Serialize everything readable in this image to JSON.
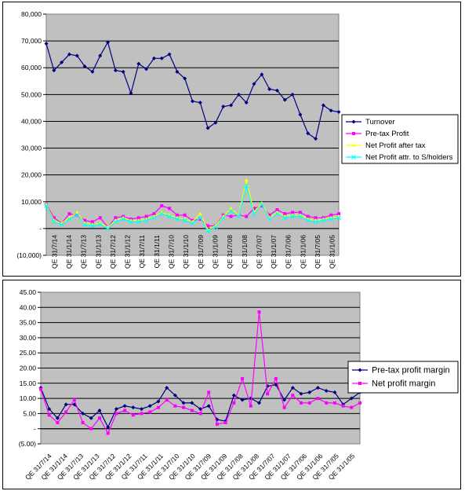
{
  "charts": [
    {
      "type": "line",
      "ylim": [
        -10000,
        80000
      ],
      "yticks": [
        -10000,
        0,
        10000,
        20000,
        30000,
        40000,
        50000,
        60000,
        70000,
        80000
      ],
      "ytick_labels": [
        "(10,000)",
        "-",
        "10,000",
        "20,000",
        "30,000",
        "40,000",
        "50,000",
        "60,000",
        "70,000",
        "80,000"
      ],
      "xtick_labels": [
        "QE 31/7/14",
        "QE 31/1/14",
        "QE 31/7/13",
        "QE 31/1/13",
        "QE 31/7/12",
        "QE 31/1/12",
        "QE 31/7/11",
        "QE 31/1/11",
        "QE 31/7/10",
        "QE 31/1/10",
        "QE 31/7/09",
        "QE 31/1/09",
        "QE 31/7/08",
        "QE 31/1/08",
        "QE 31/7/07",
        "QE 31/1/07",
        "QE 31/7/06",
        "QE 31/1/06",
        "QE 31/7/05",
        "QE 31/1/05"
      ],
      "grid": true,
      "legend_position": "right",
      "series": [
        {
          "name": "Turnover",
          "color": "#000080",
          "marker": "diamond",
          "values": [
            69000,
            59000,
            62000,
            65000,
            64500,
            60500,
            58500,
            64500,
            69500,
            59000,
            58500,
            50500,
            61500,
            59500,
            63500,
            63500,
            65000,
            58500,
            56000,
            47500,
            47000,
            37500,
            39500,
            45500,
            46000,
            50000,
            47000,
            54000,
            57500,
            52000,
            51500,
            48000,
            50000,
            42500,
            35500,
            33500,
            46000,
            44000,
            43500
          ]
        },
        {
          "name": "Pre-tax Profit",
          "color": "#ff00ff",
          "marker": "square",
          "values": [
            9000,
            4000,
            2000,
            5500,
            5000,
            3000,
            2500,
            4000,
            500,
            4000,
            4500,
            3500,
            4000,
            4500,
            5500,
            8500,
            7500,
            5000,
            5000,
            3000,
            3500,
            1000,
            1000,
            5000,
            4500,
            5000,
            4500,
            7500,
            8500,
            5000,
            7000,
            5500,
            6000,
            6000,
            4500,
            4000,
            4000,
            5000,
            5500
          ]
        },
        {
          "name": "Net Profit after tax",
          "color": "#ffff00",
          "marker": "triangle",
          "values": [
            9000,
            3000,
            2000,
            4000,
            6000,
            2000,
            1500,
            2000,
            500,
            3000,
            4000,
            3000,
            3000,
            3500,
            4500,
            6000,
            5000,
            4000,
            3500,
            2500,
            5500,
            -500,
            1000,
            4500,
            7500,
            5000,
            18000,
            6000,
            9500,
            4000,
            6000,
            4500,
            5000,
            5000,
            3500,
            3000,
            3500,
            4000,
            4500
          ]
        },
        {
          "name": "Net Profit attr. to S/holders",
          "color": "#00ffff",
          "marker": "x",
          "values": [
            8500,
            2500,
            1500,
            3500,
            5000,
            1500,
            1000,
            1500,
            0,
            2500,
            3500,
            2500,
            2500,
            3000,
            4000,
            5500,
            4500,
            3500,
            3000,
            2000,
            4000,
            -1000,
            500,
            4000,
            6500,
            4500,
            16000,
            5500,
            9000,
            3500,
            5500,
            4000,
            4500,
            4500,
            3000,
            2500,
            3000,
            3500,
            4000
          ]
        }
      ]
    },
    {
      "type": "line",
      "ylim": [
        -5,
        45
      ],
      "yticks": [
        -5,
        0,
        5,
        10,
        15,
        20,
        25,
        30,
        35,
        40,
        45
      ],
      "ytick_labels": [
        "(5.00)",
        "-",
        "5.00",
        "10.00",
        "15.00",
        "20.00",
        "25.00",
        "30.00",
        "35.00",
        "40.00",
        "45.00"
      ],
      "xtick_labels": [
        "QE 31/7/14",
        "QE 31/1/14",
        "QE 31/7/13",
        "QE 31/1/13",
        "QE 31/7/12",
        "QE 31/1/12",
        "QE 31/7/11",
        "QE 31/1/11",
        "QE 31/7/10",
        "QE 31/1/10",
        "QE 31/7/09",
        "QE 31/1/09",
        "QE 31/7/08",
        "QE 31/1/08",
        "QE 31/7/07",
        "QE 31/1/07",
        "QE 31/7/06",
        "QE 31/1/06",
        "QE 31/7/05",
        "QE 31/1/05"
      ],
      "grid": true,
      "legend_position": "right",
      "series": [
        {
          "name": "Pre-tax profit margin",
          "color": "#000080",
          "marker": "diamond",
          "values": [
            13.5,
            6.5,
            3.5,
            8,
            8,
            5,
            3.5,
            6,
            0.5,
            6.5,
            7.5,
            7,
            6.5,
            7.5,
            9,
            13.5,
            11,
            8.5,
            8.5,
            6.5,
            7.5,
            3,
            2.5,
            11,
            9.5,
            10,
            8.5,
            14,
            14.5,
            9.5,
            13.5,
            11.5,
            12,
            13.5,
            12.5,
            12,
            8,
            10,
            12
          ]
        },
        {
          "name": "Net profit margin",
          "color": "#ff00ff",
          "marker": "square",
          "values": [
            13,
            4.5,
            2,
            5.5,
            9.5,
            2,
            0,
            3.5,
            -1.5,
            5,
            6,
            4.5,
            5,
            5.5,
            7,
            9.5,
            7.5,
            7,
            6,
            5,
            12,
            1.5,
            2,
            8.5,
            16.5,
            7.5,
            38.5,
            11.5,
            16.5,
            7,
            11,
            8.5,
            8.5,
            10,
            8.5,
            8.5,
            7.5,
            7,
            8.5
          ]
        }
      ]
    }
  ]
}
